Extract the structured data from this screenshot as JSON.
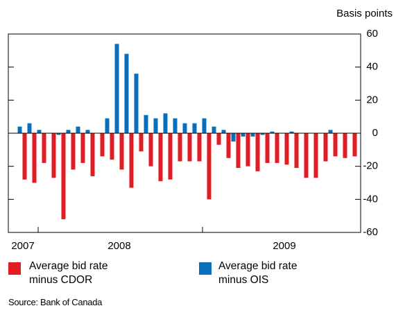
{
  "chart_data": {
    "type": "bar",
    "y_axis_label": "Basis points",
    "categories": [
      "2007",
      null,
      null,
      null,
      null,
      null,
      null,
      null,
      null,
      null,
      "2008",
      null,
      null,
      null,
      null,
      null,
      null,
      null,
      null,
      null,
      null,
      null,
      null,
      null,
      null,
      null,
      null,
      "2009",
      null,
      null,
      null,
      null,
      null,
      null,
      null
    ],
    "series": [
      {
        "name": "Average bid rate minus CDOR",
        "color": "#e31b23",
        "values": [
          -28,
          -30,
          -18,
          -27,
          -52,
          -22,
          -18,
          -26,
          -14,
          -16,
          -22,
          -33,
          -11,
          -20,
          -29,
          -28,
          -17,
          -17,
          -17,
          -40,
          -7,
          -15,
          -21,
          -20,
          -23,
          -18,
          -18,
          -19,
          -21,
          -27,
          -27,
          -17,
          -14,
          -15,
          -14
        ]
      },
      {
        "name": "Average bid rate minus OIS",
        "color": "#0a6fba",
        "values": [
          4,
          6,
          2,
          0,
          -1,
          2,
          4,
          2,
          0,
          9,
          54,
          48,
          36,
          11,
          9,
          12,
          9,
          6,
          6,
          9,
          4,
          2,
          -5,
          -2,
          -2,
          -1,
          1,
          0,
          1,
          0,
          0,
          0,
          2,
          0,
          0
        ]
      }
    ],
    "ylim": [
      -60,
      60
    ],
    "yticks": [
      -60,
      -40,
      -20,
      0,
      20,
      40,
      60
    ],
    "source": "Source: Bank of Canada"
  }
}
